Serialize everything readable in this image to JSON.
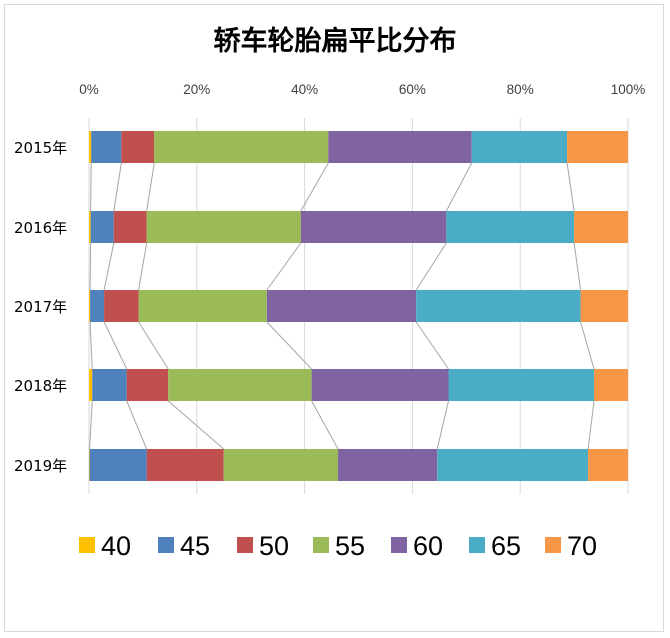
{
  "chart_data": {
    "type": "bar",
    "orientation": "horizontal",
    "stacked": "percent",
    "title": "轿车轮胎扁平比分布",
    "x_ticks": [
      "0%",
      "20%",
      "40%",
      "60%",
      "80%",
      "100%"
    ],
    "xlim": [
      0,
      100
    ],
    "grid": true,
    "legend_position": "bottom",
    "series_lines": true,
    "categories": [
      "2015年",
      "2016年",
      "2017年",
      "2018年",
      "2019年"
    ],
    "series": [
      {
        "name": "40",
        "color": "#ffc000",
        "values": [
          0.4,
          0.3,
          0.2,
          0.6,
          0.1
        ]
      },
      {
        "name": "45",
        "color": "#4f81bd",
        "values": [
          5.6,
          4.3,
          2.6,
          6.4,
          10.6
        ]
      },
      {
        "name": "50",
        "color": "#c0504d",
        "values": [
          6.1,
          6.1,
          6.4,
          7.7,
          14.3
        ]
      },
      {
        "name": "55",
        "color": "#9bbb59",
        "values": [
          32.3,
          28.6,
          23.8,
          26.6,
          21.2
        ]
      },
      {
        "name": "60",
        "color": "#8064a2",
        "values": [
          26.6,
          27.0,
          27.7,
          25.4,
          18.4
        ]
      },
      {
        "name": "65",
        "color": "#4bacc6",
        "values": [
          17.7,
          23.7,
          30.5,
          27.0,
          28.0
        ]
      },
      {
        "name": "70",
        "color": "#f79646",
        "values": [
          11.3,
          10.0,
          8.8,
          6.3,
          7.4
        ]
      }
    ]
  }
}
